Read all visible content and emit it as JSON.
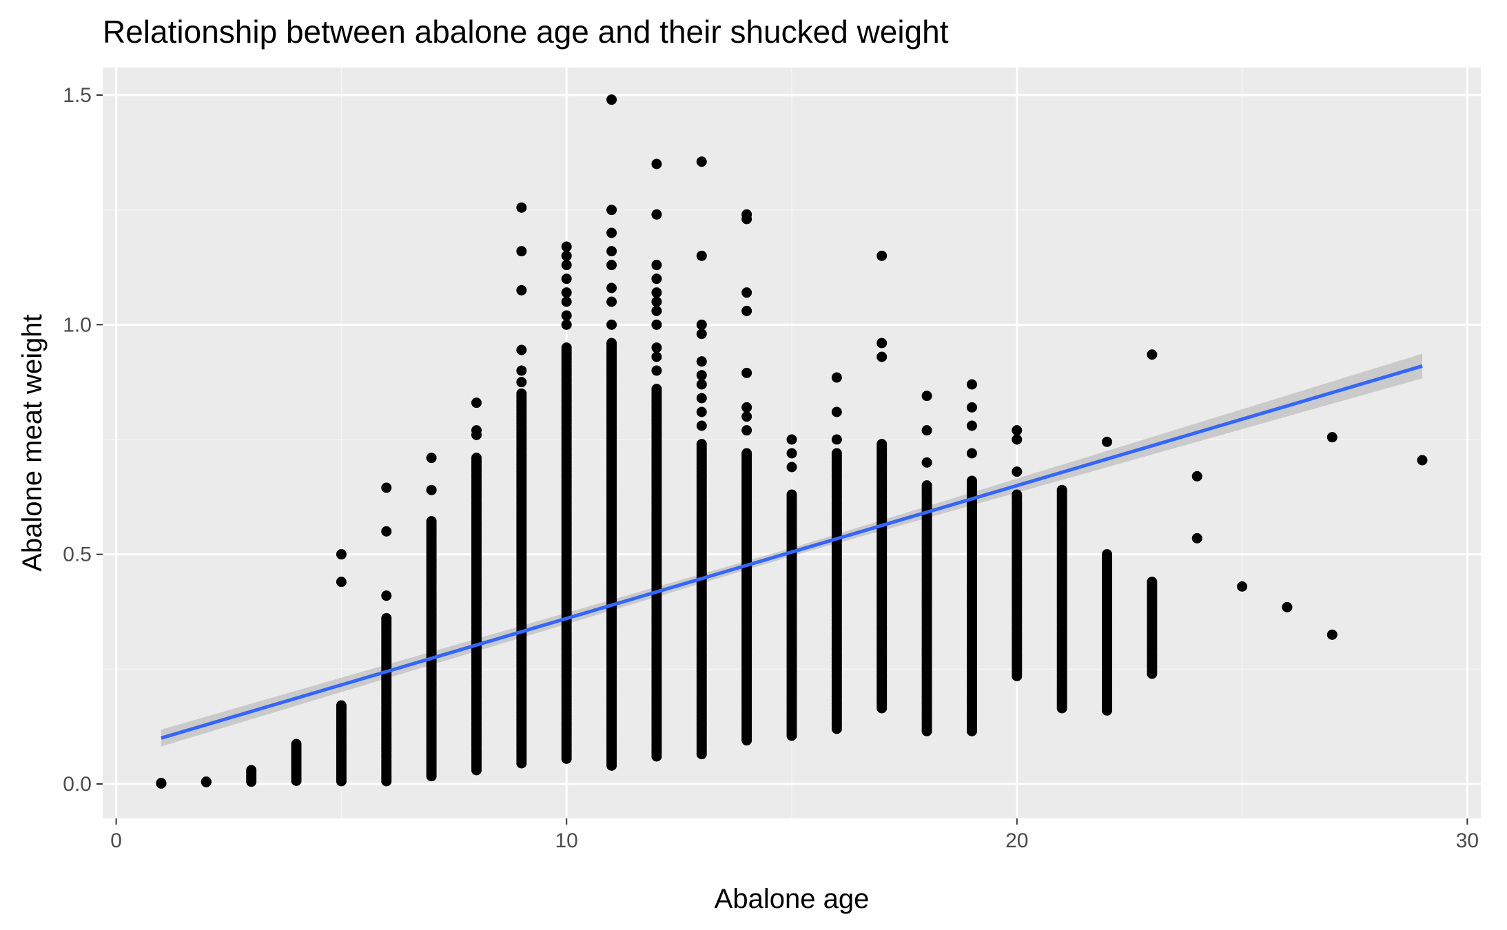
{
  "chart_data": {
    "type": "scatter",
    "title": "Relationship between abalone age and their shucked weight",
    "xlabel": "Abalone age",
    "ylabel": "Abalone meat weight",
    "xlim": [
      -0.3,
      30.3
    ],
    "ylim": [
      -0.075,
      1.56
    ],
    "x_ticks": [
      0,
      10,
      20,
      30
    ],
    "x_tick_labels": [
      "0",
      "10",
      "20",
      "30"
    ],
    "y_ticks": [
      0.0,
      0.5,
      1.0,
      1.5
    ],
    "y_tick_labels": [
      "0.0",
      "0.5",
      "1.0",
      "1.5"
    ],
    "grid": true,
    "legend": "none",
    "colors": {
      "panel_background": "#ebebeb",
      "grid_major": "#ffffff",
      "grid_minor": "#f5f5f5",
      "points": "#000000",
      "trend_line": "#3366ff",
      "confidence_band": "#c4c4c4"
    },
    "point_ranges": [
      {
        "x": 1,
        "min": 0.001,
        "max": 0.002
      },
      {
        "x": 2,
        "min": 0.004,
        "max": 0.005
      },
      {
        "x": 3,
        "min": 0.005,
        "max": 0.034
      },
      {
        "x": 4,
        "min": 0.007,
        "max": 0.09
      },
      {
        "x": 5,
        "min": 0.006,
        "max": 0.175,
        "extra": [
          0.44,
          0.5
        ]
      },
      {
        "x": 6,
        "min": 0.006,
        "max": 0.365,
        "extra": [
          0.41,
          0.55,
          0.645
        ]
      },
      {
        "x": 7,
        "min": 0.017,
        "max": 0.575,
        "extra": [
          0.64,
          0.71
        ]
      },
      {
        "x": 8,
        "min": 0.03,
        "max": 0.71,
        "extra": [
          0.76,
          0.77,
          0.83
        ]
      },
      {
        "x": 9,
        "min": 0.045,
        "max": 0.85,
        "extra": [
          0.875,
          0.9,
          0.945,
          1.075,
          1.16,
          1.255
        ]
      },
      {
        "x": 10,
        "min": 0.055,
        "max": 0.95,
        "extra": [
          1.0,
          1.02,
          1.05,
          1.07,
          1.1,
          1.13,
          1.15,
          1.17
        ]
      },
      {
        "x": 11,
        "min": 0.04,
        "max": 0.96,
        "extra": [
          1.0,
          1.05,
          1.08,
          1.13,
          1.16,
          1.2,
          1.25,
          1.49
        ]
      },
      {
        "x": 12,
        "min": 0.06,
        "max": 0.86,
        "extra": [
          0.9,
          0.93,
          0.95,
          1.0,
          1.03,
          1.05,
          1.07,
          1.1,
          1.13,
          1.24,
          1.35
        ]
      },
      {
        "x": 13,
        "min": 0.065,
        "max": 0.74,
        "extra": [
          0.78,
          0.81,
          0.84,
          0.87,
          0.89,
          0.92,
          0.98,
          1.0,
          1.15,
          1.355
        ]
      },
      {
        "x": 14,
        "min": 0.095,
        "max": 0.72,
        "extra": [
          0.77,
          0.8,
          0.82,
          0.895,
          1.03,
          1.07,
          1.23,
          1.24
        ]
      },
      {
        "x": 15,
        "min": 0.105,
        "max": 0.63,
        "extra": [
          0.69,
          0.72,
          0.75
        ]
      },
      {
        "x": 16,
        "min": 0.12,
        "max": 0.72,
        "extra": [
          0.75,
          0.81,
          0.885
        ]
      },
      {
        "x": 17,
        "min": 0.165,
        "max": 0.74,
        "extra": [
          0.93,
          0.96,
          1.15
        ]
      },
      {
        "x": 18,
        "min": 0.115,
        "max": 0.65,
        "extra": [
          0.7,
          0.77,
          0.845
        ]
      },
      {
        "x": 19,
        "min": 0.115,
        "max": 0.66,
        "extra": [
          0.72,
          0.78,
          0.82,
          0.87
        ]
      },
      {
        "x": 20,
        "min": 0.235,
        "max": 0.63,
        "extra": [
          0.68,
          0.75,
          0.77
        ]
      },
      {
        "x": 21,
        "min": 0.165,
        "max": 0.64,
        "extra": []
      },
      {
        "x": 22,
        "min": 0.16,
        "max": 0.5,
        "extra": [
          0.745
        ]
      },
      {
        "x": 23,
        "min": 0.24,
        "max": 0.44,
        "extra": [
          0.935
        ]
      },
      {
        "x": 24,
        "min": 0.535,
        "max": 0.535,
        "extra": [
          0.67
        ]
      },
      {
        "x": 25,
        "min": 0.43,
        "max": 0.43,
        "extra": []
      },
      {
        "x": 26,
        "min": 0.385,
        "max": 0.385,
        "extra": []
      },
      {
        "x": 27,
        "min": 0.325,
        "max": 0.325,
        "extra": [
          0.755
        ]
      },
      {
        "x": 29,
        "min": 0.705,
        "max": 0.705,
        "extra": []
      }
    ],
    "trend_line": {
      "method": "linear",
      "x": [
        1,
        29
      ],
      "y": [
        0.1,
        0.91
      ],
      "ci_halfwidth": [
        0.016,
        0.03
      ]
    }
  }
}
